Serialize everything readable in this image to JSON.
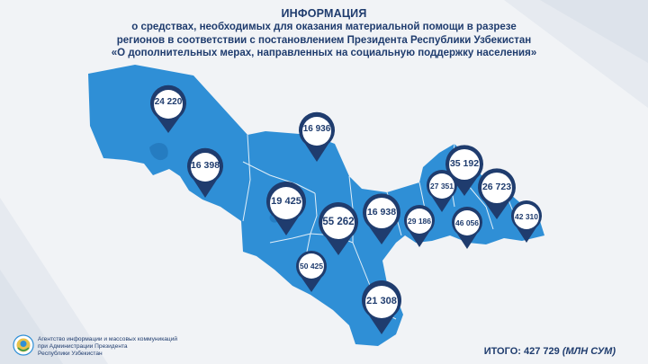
{
  "header": {
    "title": "ИНФОРМАЦИЯ",
    "line1": "о средствах, необходимых для оказания материальной помощи в разрезе",
    "line2": "регионов в соответствии с постановлением Президента Республики Узбекистан",
    "line3": "«О дополнительных мерах, направленных на социальную поддержку населения»"
  },
  "colors": {
    "map_fill": "#2f8fd6",
    "region_border": "#ffffff",
    "pin": "#1f3c6e",
    "text": "#1f3c6e"
  },
  "regions": [
    {
      "value": "24 220"
    },
    {
      "value": "16 398"
    },
    {
      "value": "16 936"
    },
    {
      "value": "19 425"
    },
    {
      "value": "55 262"
    },
    {
      "value": "50 425"
    },
    {
      "value": "16 938"
    },
    {
      "value": "21 308"
    },
    {
      "value": "29 186"
    },
    {
      "value": "27 351"
    },
    {
      "value": "35 192"
    },
    {
      "value": "26 723"
    },
    {
      "value": "46 056"
    },
    {
      "value": "42 310"
    }
  ],
  "footer": {
    "org_line1": "Агентство информации и массовых коммуникаций",
    "org_line2": "при Администрации Президента",
    "org_line3": "Республики Узбекистан",
    "total_label": "ИТОГО: 427 729",
    "total_unit": "(МЛН СУМ)"
  }
}
